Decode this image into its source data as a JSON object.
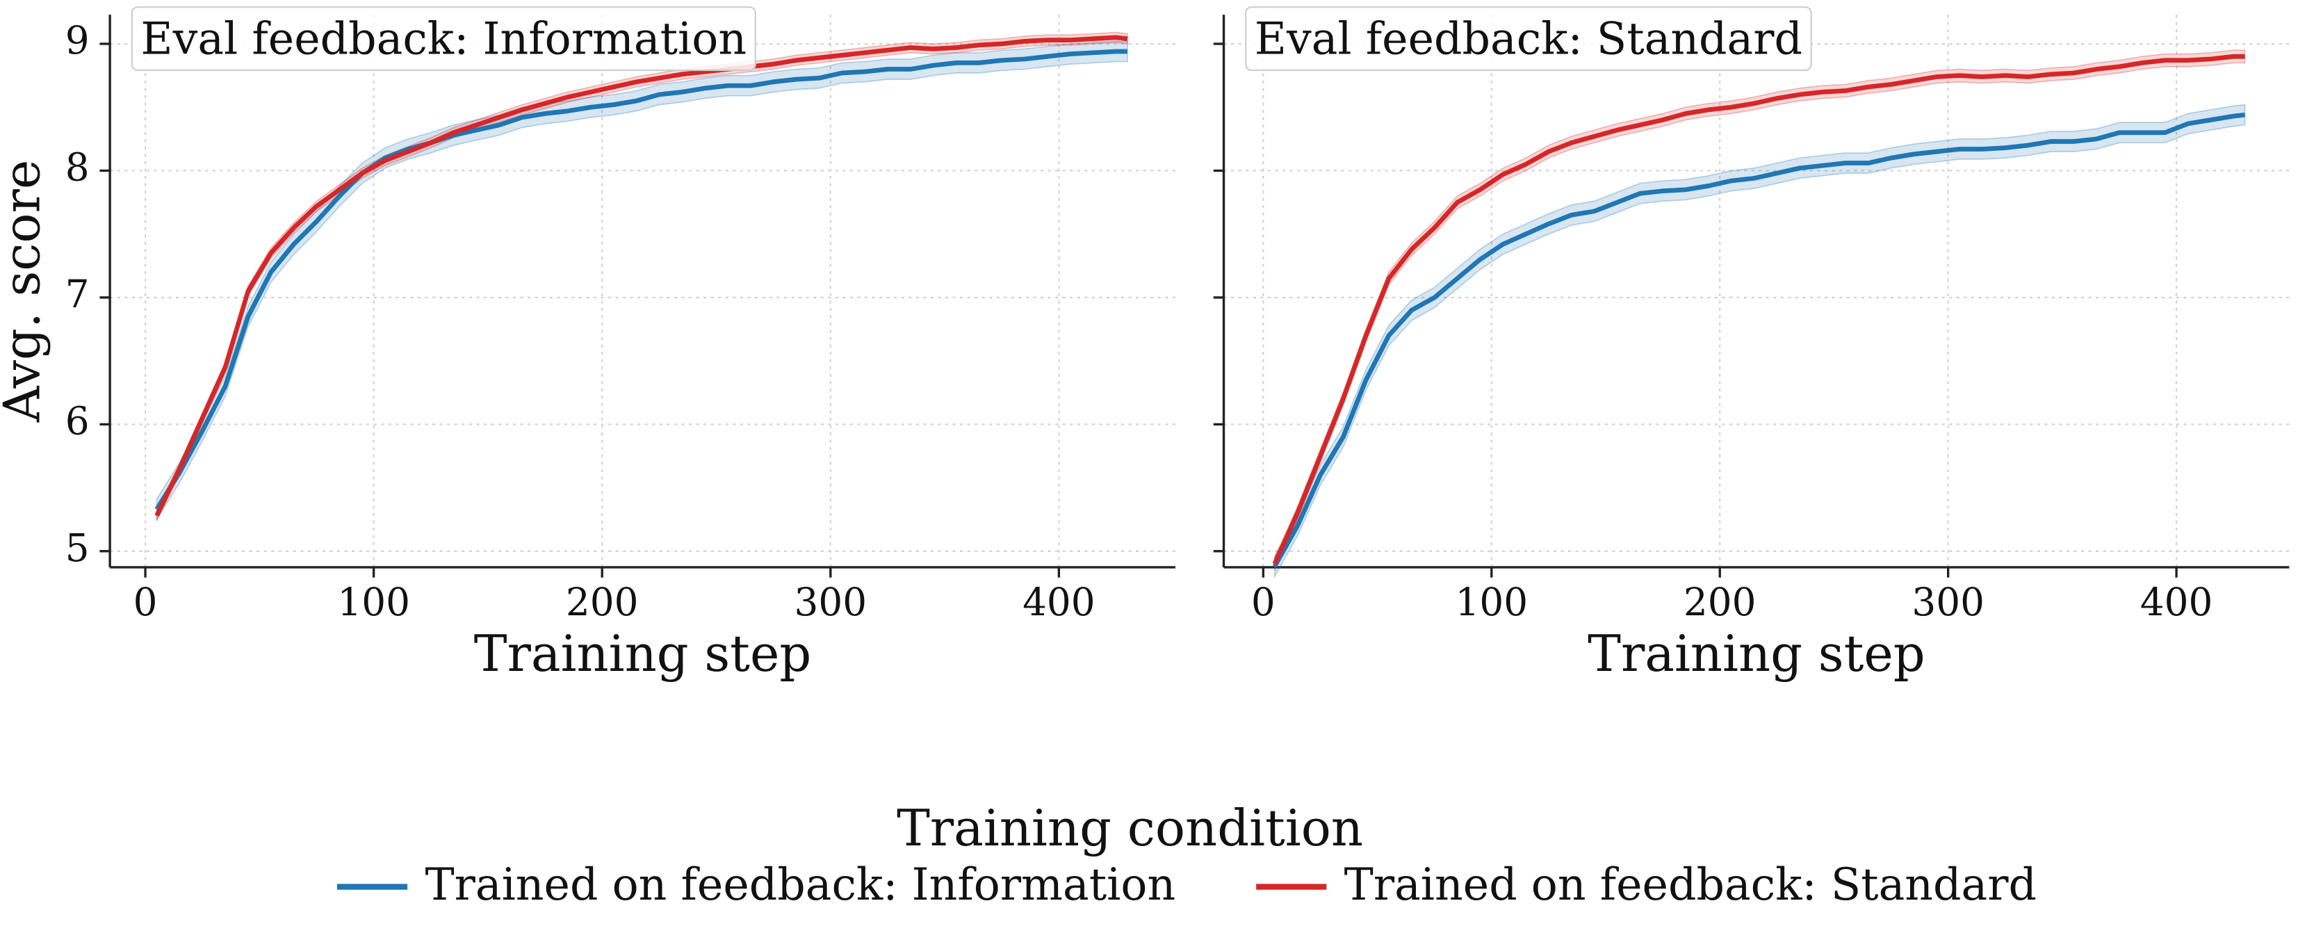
{
  "chart_data": [
    {
      "type": "line",
      "title": "Eval feedback: Information",
      "xlabel": "Training step",
      "ylabel": "Avg. score",
      "x": [
        5,
        15,
        25,
        35,
        45,
        55,
        65,
        75,
        85,
        95,
        105,
        115,
        125,
        135,
        145,
        155,
        165,
        175,
        185,
        195,
        205,
        215,
        225,
        235,
        245,
        255,
        265,
        275,
        285,
        295,
        305,
        315,
        325,
        335,
        345,
        355,
        365,
        375,
        385,
        395,
        405,
        415,
        425,
        430
      ],
      "series": [
        {
          "name": "Trained on feedback: Information",
          "color": "#1f77b4",
          "error": 0.08,
          "values": [
            5.33,
            5.62,
            5.95,
            6.3,
            6.85,
            7.2,
            7.42,
            7.6,
            7.8,
            7.98,
            8.1,
            8.17,
            8.22,
            8.28,
            8.32,
            8.36,
            8.42,
            8.45,
            8.47,
            8.5,
            8.52,
            8.55,
            8.6,
            8.62,
            8.65,
            8.67,
            8.67,
            8.7,
            8.72,
            8.73,
            8.77,
            8.78,
            8.8,
            8.8,
            8.83,
            8.85,
            8.85,
            8.87,
            8.88,
            8.9,
            8.92,
            8.93,
            8.94,
            8.94
          ]
        },
        {
          "name": "Trained on feedback: Standard",
          "color": "#d62728",
          "error": 0.04,
          "values": [
            5.28,
            5.65,
            6.05,
            6.45,
            7.05,
            7.35,
            7.55,
            7.72,
            7.85,
            7.98,
            8.08,
            8.15,
            8.22,
            8.3,
            8.36,
            8.42,
            8.48,
            8.53,
            8.58,
            8.62,
            8.66,
            8.7,
            8.73,
            8.76,
            8.78,
            8.8,
            8.82,
            8.84,
            8.87,
            8.89,
            8.91,
            8.93,
            8.95,
            8.97,
            8.96,
            8.97,
            8.99,
            9.0,
            9.02,
            9.03,
            9.03,
            9.04,
            9.05,
            9.04
          ]
        }
      ],
      "xlim": [
        -15.5,
        451
      ],
      "xticks": [
        0,
        100,
        200,
        300,
        400
      ],
      "ylim": [
        4.873,
        9.23
      ],
      "yticks": [
        5,
        6,
        7,
        8,
        9
      ],
      "grid": true,
      "ytick_labels": true
    },
    {
      "type": "line",
      "title": "Eval feedback: Standard",
      "xlabel": "Training step",
      "x": [
        5,
        15,
        25,
        35,
        45,
        55,
        65,
        75,
        85,
        95,
        105,
        115,
        125,
        135,
        145,
        155,
        165,
        175,
        185,
        195,
        205,
        215,
        225,
        235,
        245,
        255,
        265,
        275,
        285,
        295,
        305,
        315,
        325,
        335,
        345,
        355,
        365,
        375,
        385,
        395,
        405,
        415,
        425,
        430
      ],
      "series": [
        {
          "name": "Trained on feedback: Information",
          "color": "#1f77b4",
          "error": 0.08,
          "values": [
            4.88,
            5.2,
            5.6,
            5.9,
            6.35,
            6.7,
            6.9,
            7.0,
            7.15,
            7.3,
            7.42,
            7.5,
            7.58,
            7.65,
            7.68,
            7.75,
            7.82,
            7.84,
            7.85,
            7.88,
            7.92,
            7.94,
            7.98,
            8.02,
            8.04,
            8.06,
            8.06,
            8.1,
            8.13,
            8.15,
            8.17,
            8.17,
            8.18,
            8.2,
            8.23,
            8.23,
            8.25,
            8.3,
            8.3,
            8.3,
            8.37,
            8.4,
            8.43,
            8.44
          ]
        },
        {
          "name": "Trained on feedback: Standard",
          "color": "#d62728",
          "error": 0.05,
          "values": [
            4.9,
            5.3,
            5.75,
            6.2,
            6.7,
            7.15,
            7.38,
            7.55,
            7.75,
            7.85,
            7.97,
            8.05,
            8.15,
            8.22,
            8.27,
            8.32,
            8.36,
            8.4,
            8.45,
            8.48,
            8.5,
            8.53,
            8.57,
            8.6,
            8.62,
            8.63,
            8.66,
            8.68,
            8.71,
            8.74,
            8.75,
            8.74,
            8.75,
            8.74,
            8.76,
            8.77,
            8.8,
            8.82,
            8.85,
            8.87,
            8.87,
            8.88,
            8.9,
            8.9
          ]
        }
      ],
      "xlim": [
        -17.3,
        449.4
      ],
      "xticks": [
        0,
        100,
        200,
        300,
        400
      ],
      "ylim": [
        4.873,
        9.23
      ],
      "yticks": [
        5,
        6,
        7,
        8,
        9
      ],
      "grid": true,
      "ytick_labels": false
    }
  ],
  "legend": {
    "title": "Training condition",
    "position": "bottom"
  }
}
